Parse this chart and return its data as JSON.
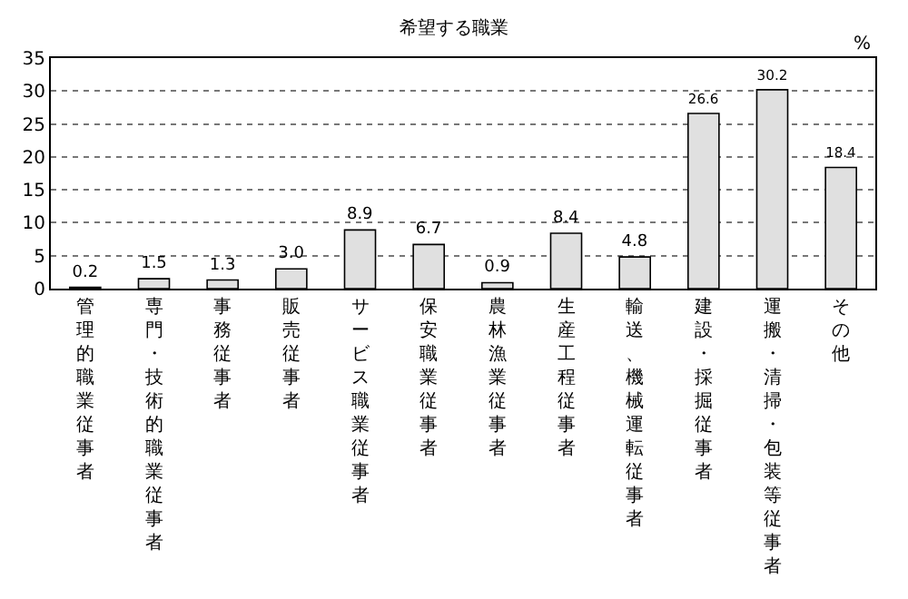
{
  "chart_data": {
    "type": "bar",
    "title": "希望する職業",
    "ylabel": "%",
    "categories": [
      "管理的職業従事者",
      "専門・技術的職業従事者",
      "事務従事者",
      "販売従事者",
      "サービス職業従事者",
      "保安職業従事者",
      "農林漁業従事者",
      "生産工程従事者",
      "輸送、機械運転従事者",
      "建設・採掘従事者",
      "運搬・清掃・包装等従事者",
      "その他"
    ],
    "values": [
      0.2,
      1.5,
      1.3,
      3.0,
      8.9,
      6.7,
      0.9,
      8.4,
      4.8,
      26.6,
      30.2,
      18.4
    ],
    "value_labels": [
      "0.2",
      "1.5",
      "1.3",
      "3.0",
      "8.9",
      "6.7",
      "0.9",
      "8.4",
      "4.8",
      "26.6",
      "30.2",
      "18.4"
    ],
    "color": "#e0e0e0",
    "ylim": [
      0,
      35
    ],
    "yticks": [
      0,
      5,
      10,
      15,
      20,
      25,
      30,
      35
    ],
    "grid": "y",
    "legend": false
  }
}
